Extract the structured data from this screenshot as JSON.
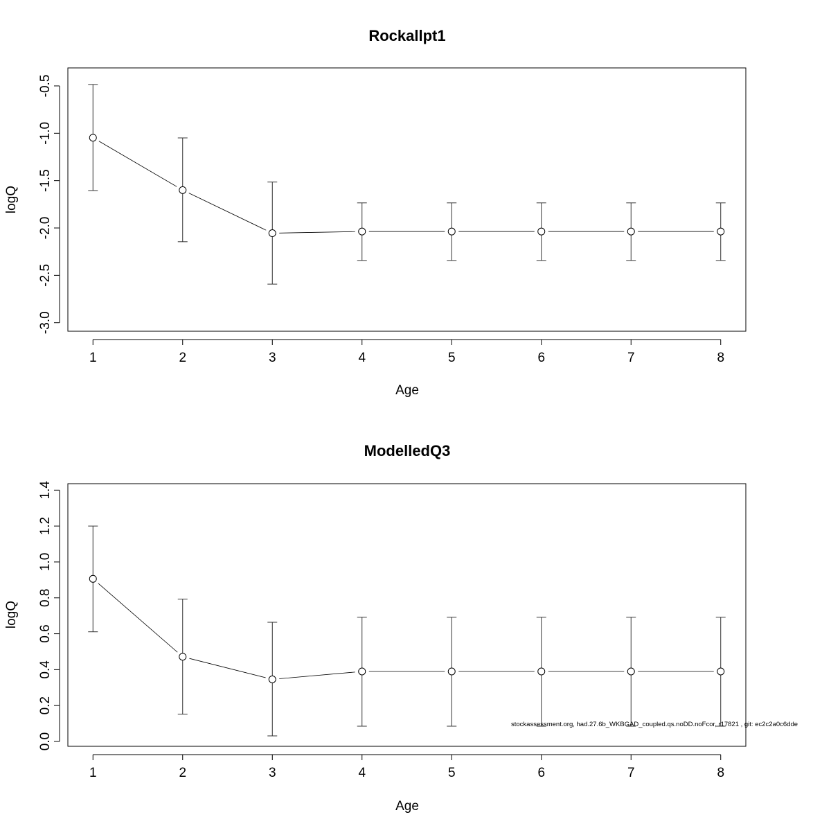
{
  "chart_data": [
    {
      "type": "line",
      "title": "Rockallpt1",
      "xlabel": "Age",
      "ylabel": "logQ",
      "xlim": [
        0.72,
        8.28
      ],
      "ylim": [
        -3.09,
        -0.31
      ],
      "x_ticks": [
        1,
        2,
        3,
        4,
        5,
        6,
        7,
        8
      ],
      "y_ticks": [
        -0.5,
        -1.0,
        -1.5,
        -2.0,
        -2.5,
        -3.0
      ],
      "y_tick_labels": [
        "-0.5",
        "-1.0",
        "-1.5",
        "-2.0",
        "-2.5",
        "-3.0"
      ],
      "grid": false,
      "series": [
        {
          "name": "logQ",
          "x": [
            1,
            2,
            3,
            4,
            5,
            6,
            7,
            8
          ],
          "values": [
            -1.047,
            -1.6,
            -2.055,
            -2.037,
            -2.037,
            -2.037,
            -2.037,
            -2.037
          ],
          "upper": [
            -0.485,
            -1.049,
            -1.515,
            -1.735,
            -1.735,
            -1.735,
            -1.735,
            -1.735
          ],
          "lower": [
            -1.605,
            -2.145,
            -2.593,
            -2.343,
            -2.343,
            -2.343,
            -2.343,
            -2.343
          ]
        }
      ]
    },
    {
      "type": "line",
      "title": "ModelledQ3",
      "xlabel": "Age",
      "ylabel": "logQ",
      "xlim": [
        0.72,
        8.28
      ],
      "ylim": [
        -0.027,
        1.436
      ],
      "x_ticks": [
        1,
        2,
        3,
        4,
        5,
        6,
        7,
        8
      ],
      "y_ticks": [
        0.0,
        0.2,
        0.4,
        0.6,
        0.8,
        1.0,
        1.2,
        1.4
      ],
      "y_tick_labels": [
        "0.0",
        "0.2",
        "0.4",
        "0.6",
        "0.8",
        "1.0",
        "1.2",
        "1.4"
      ],
      "grid": false,
      "series": [
        {
          "name": "logQ",
          "x": [
            1,
            2,
            3,
            4,
            5,
            6,
            7,
            8
          ],
          "values": [
            0.906,
            0.472,
            0.346,
            0.39,
            0.39,
            0.39,
            0.39,
            0.39
          ],
          "upper": [
            1.2,
            0.793,
            0.664,
            0.692,
            0.692,
            0.692,
            0.692,
            0.692
          ],
          "lower": [
            0.611,
            0.152,
            0.031,
            0.085,
            0.085,
            0.085,
            0.085,
            0.085
          ]
        }
      ],
      "annotation": "stockassessment.org, had.27.6b_WKBGAD_coupled.qs.noDD.noFcor, r17821 , git: ec2c2a0c6dde"
    }
  ]
}
